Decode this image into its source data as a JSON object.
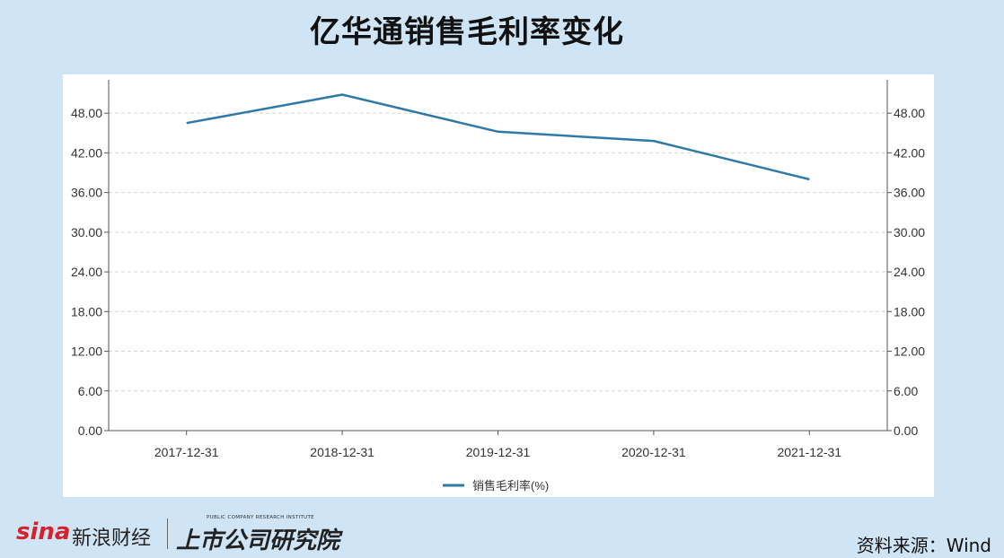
{
  "title": "亿华通销售毛利率变化",
  "footer": {
    "brand_sina": "sina",
    "brand_cn": "新浪财经",
    "institute_en": "PUBLIC COMPANY RESEARCH INSTITUTE",
    "institute_cn": "上市公司研究院",
    "source": "资料来源：Wind"
  },
  "chart_data": {
    "type": "line",
    "categories": [
      "2017-12-31",
      "2018-12-31",
      "2019-12-31",
      "2020-12-31",
      "2021-12-31"
    ],
    "series": [
      {
        "name": "销售毛利率(%)",
        "values": [
          46.5,
          50.8,
          45.2,
          43.8,
          38.0
        ],
        "color": "#2e79a5"
      }
    ],
    "y_ticks": [
      "0.00",
      "6.00",
      "12.00",
      "18.00",
      "24.00",
      "30.00",
      "36.00",
      "42.00",
      "48.00"
    ],
    "ylim": [
      0,
      52.5
    ],
    "grid": true,
    "dual_y_axis": true,
    "legend": "bottom-center"
  }
}
